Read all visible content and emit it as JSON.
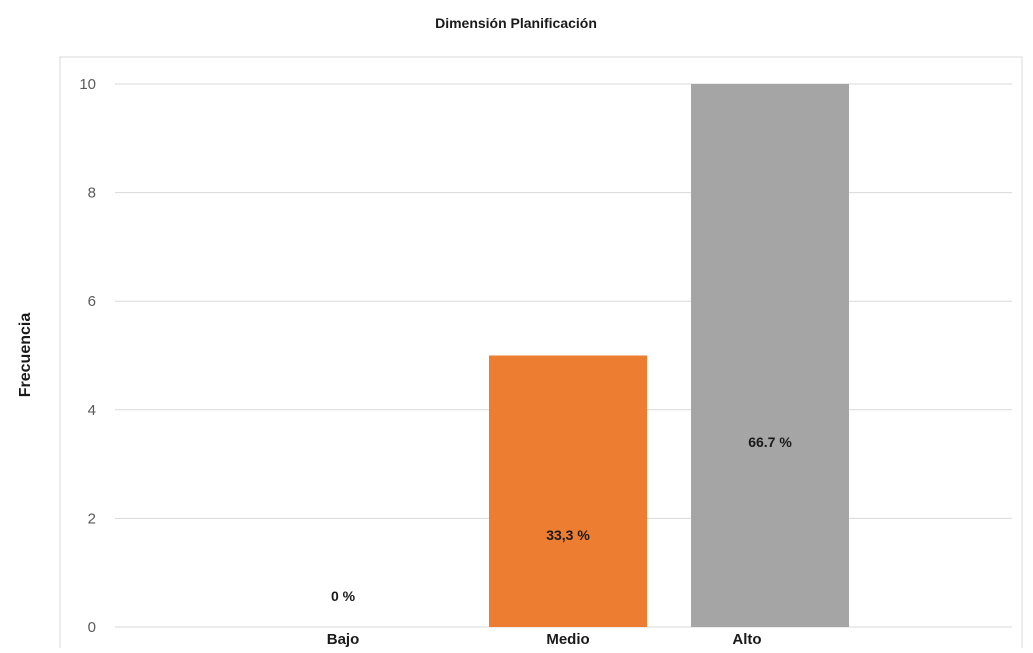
{
  "chart_data": {
    "type": "bar",
    "title": "Dimensión Planificación",
    "ylabel": "Frecuencia",
    "xlabel": "",
    "categories": [
      "Bajo",
      "Medio",
      "Alto"
    ],
    "values": [
      0,
      5,
      10
    ],
    "data_labels": [
      "0 %",
      "33,3 %",
      "66.7 %"
    ],
    "colors": [
      "#4472c4",
      "#ed7d31",
      "#a5a5a5"
    ],
    "ylim": [
      0,
      10
    ],
    "yticks": [
      0,
      2,
      4,
      6,
      8,
      10
    ],
    "grid": true,
    "legend": "none"
  }
}
